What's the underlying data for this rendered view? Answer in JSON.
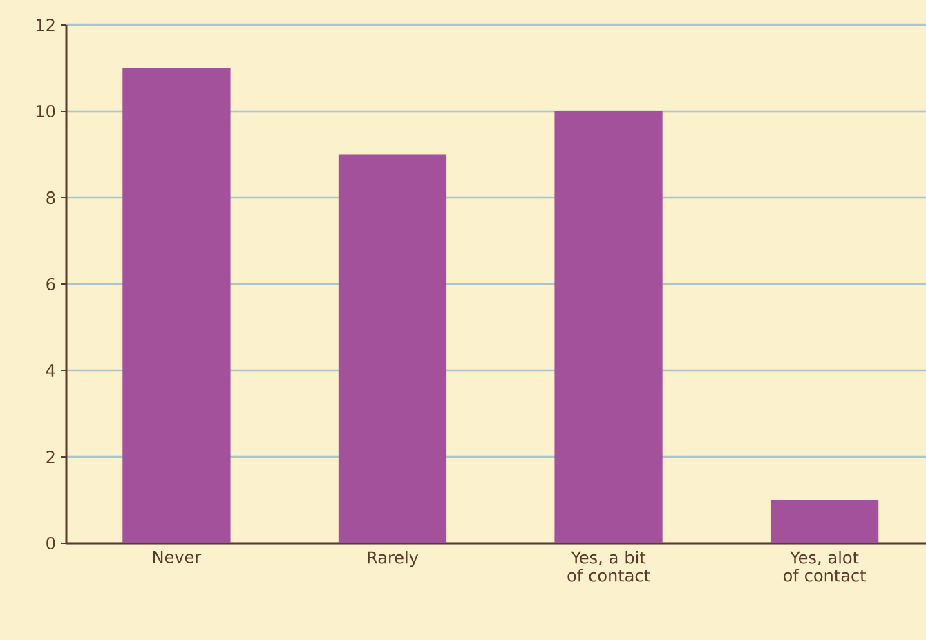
{
  "chart_data": {
    "type": "bar",
    "categories": [
      "Never",
      "Rarely",
      "Yes, a bit of contact",
      "Yes, alot of contact"
    ],
    "values": [
      11,
      9,
      10,
      1
    ],
    "color": "#a4519c",
    "ylim": [
      0,
      12
    ],
    "yticks": [
      0,
      2,
      4,
      6,
      8,
      10,
      12
    ],
    "grid": "y"
  }
}
